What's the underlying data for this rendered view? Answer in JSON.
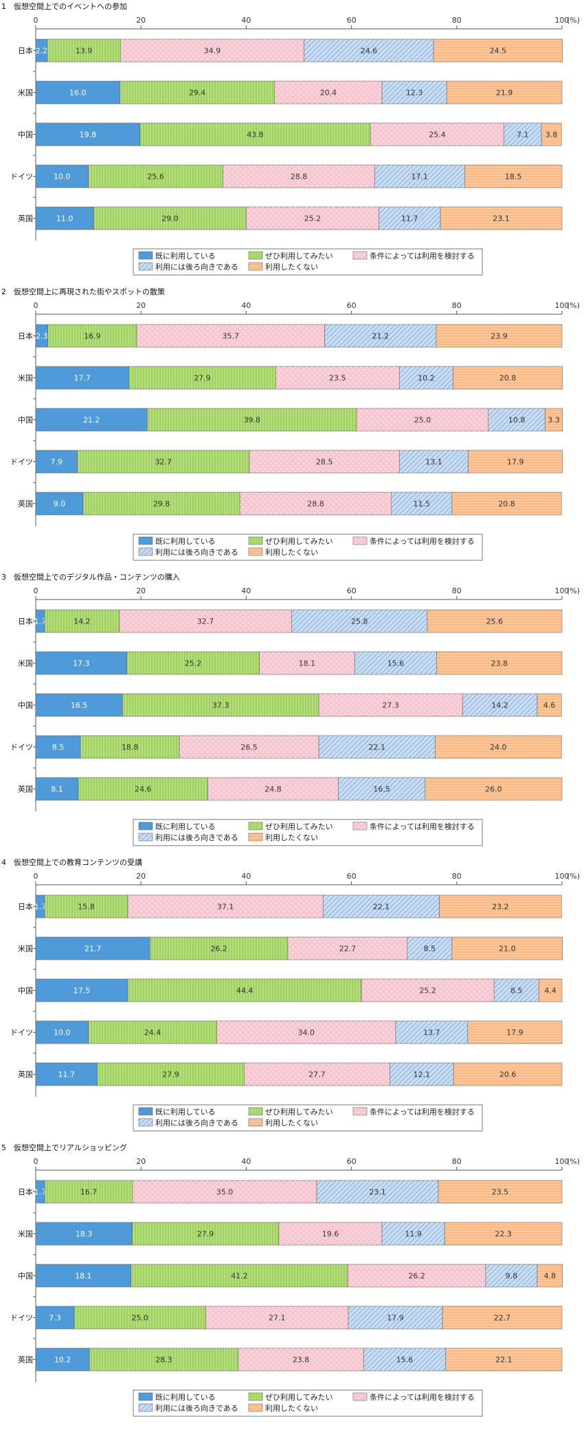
{
  "unit_label": "(%)",
  "legend_labels": [
    "既に利用している",
    "ぜひ利用してみたい",
    "条件によっては利用を検討する",
    "利用には後ろ向きである",
    "利用したくない"
  ],
  "series_colors": [
    "#4f9ad9",
    "#b6e07a",
    "#fbc6d0",
    "#b9d3ee",
    "#fcc79b"
  ],
  "chart_data": [
    {
      "type": "bar",
      "orientation": "horizontal-stacked",
      "title": "1　仮想空間上でのイベントへの参加",
      "categories": [
        "日本",
        "米国",
        "中国",
        "ドイツ",
        "英国"
      ],
      "xlim": [
        0,
        100
      ],
      "ticks": [
        "0",
        "20",
        "40",
        "60",
        "80",
        "100"
      ],
      "series": [
        {
          "name": "既に利用している",
          "values": [
            2.2,
            16.0,
            19.8,
            10.0,
            11.0
          ]
        },
        {
          "name": "ぜひ利用してみたい",
          "values": [
            13.9,
            29.4,
            43.8,
            25.6,
            29.0
          ]
        },
        {
          "name": "条件によっては利用を検討する",
          "values": [
            34.9,
            20.4,
            25.4,
            28.8,
            25.2
          ]
        },
        {
          "name": "利用には後ろ向きである",
          "values": [
            24.6,
            12.3,
            7.1,
            17.1,
            11.7
          ]
        },
        {
          "name": "利用したくない",
          "values": [
            24.5,
            21.9,
            3.8,
            18.5,
            23.1
          ]
        }
      ]
    },
    {
      "type": "bar",
      "orientation": "horizontal-stacked",
      "title": "2　仮想空間上に再現された街やスポットの散策",
      "categories": [
        "日本",
        "米国",
        "中国",
        "ドイツ",
        "英国"
      ],
      "xlim": [
        0,
        100
      ],
      "ticks": [
        "0",
        "20",
        "40",
        "60",
        "80",
        "100"
      ],
      "series": [
        {
          "name": "既に利用している",
          "values": [
            2.3,
            17.7,
            21.2,
            7.9,
            9.0
          ]
        },
        {
          "name": "ぜひ利用してみたい",
          "values": [
            16.9,
            27.9,
            39.8,
            32.7,
            29.8
          ]
        },
        {
          "name": "条件によっては利用を検討する",
          "values": [
            35.7,
            23.5,
            25.0,
            28.5,
            28.8
          ]
        },
        {
          "name": "利用には後ろ向きである",
          "values": [
            21.2,
            10.2,
            10.8,
            13.1,
            11.5
          ]
        },
        {
          "name": "利用したくない",
          "values": [
            23.9,
            20.8,
            3.3,
            17.9,
            20.8
          ]
        }
      ]
    },
    {
      "type": "bar",
      "orientation": "horizontal-stacked",
      "title": "3　仮想空間上でのデジタル作品・コンテンツの購入",
      "categories": [
        "日本",
        "米国",
        "中国",
        "ドイツ",
        "英国"
      ],
      "xlim": [
        0,
        100
      ],
      "ticks": [
        "0",
        "20",
        "40",
        "60",
        "80",
        "100"
      ],
      "series": [
        {
          "name": "既に利用している",
          "values": [
            1.7,
            17.3,
            16.5,
            8.5,
            8.1
          ]
        },
        {
          "name": "ぜひ利用してみたい",
          "values": [
            14.2,
            25.2,
            37.3,
            18.8,
            24.6
          ]
        },
        {
          "name": "条件によっては利用を検討する",
          "values": [
            32.7,
            18.1,
            27.3,
            26.5,
            24.8
          ]
        },
        {
          "name": "利用には後ろ向きである",
          "values": [
            25.8,
            15.6,
            14.2,
            22.1,
            16.5
          ]
        },
        {
          "name": "利用したくない",
          "values": [
            25.6,
            23.8,
            4.6,
            24.0,
            26.0
          ]
        }
      ]
    },
    {
      "type": "bar",
      "orientation": "horizontal-stacked",
      "title": "4　仮想空間上での教育コンテンツの受講",
      "categories": [
        "日本",
        "米国",
        "中国",
        "ドイツ",
        "英国"
      ],
      "xlim": [
        0,
        100
      ],
      "ticks": [
        "0",
        "20",
        "40",
        "60",
        "80",
        "100"
      ],
      "series": [
        {
          "name": "既に利用している",
          "values": [
            1.7,
            21.7,
            17.5,
            10.0,
            11.7
          ]
        },
        {
          "name": "ぜひ利用してみたい",
          "values": [
            15.8,
            26.2,
            44.4,
            24.4,
            27.9
          ]
        },
        {
          "name": "条件によっては利用を検討する",
          "values": [
            37.1,
            22.7,
            25.2,
            34.0,
            27.7
          ]
        },
        {
          "name": "利用には後ろ向きである",
          "values": [
            22.1,
            8.5,
            8.5,
            13.7,
            12.1
          ]
        },
        {
          "name": "利用したくない",
          "values": [
            23.2,
            21.0,
            4.4,
            17.9,
            20.6
          ]
        }
      ]
    },
    {
      "type": "bar",
      "orientation": "horizontal-stacked",
      "title": "5　仮想空間上でリアルショッピング",
      "categories": [
        "日本",
        "米国",
        "中国",
        "ドイツ",
        "英国"
      ],
      "xlim": [
        0,
        100
      ],
      "ticks": [
        "0",
        "20",
        "40",
        "60",
        "80",
        "100"
      ],
      "series": [
        {
          "name": "既に利用している",
          "values": [
            1.7,
            18.3,
            18.1,
            7.3,
            10.2
          ]
        },
        {
          "name": "ぜひ利用してみたい",
          "values": [
            16.7,
            27.9,
            41.2,
            25.0,
            28.3
          ]
        },
        {
          "name": "条件によっては利用を検討する",
          "values": [
            35.0,
            19.6,
            26.2,
            27.1,
            23.8
          ]
        },
        {
          "name": "利用には後ろ向きである",
          "values": [
            23.1,
            11.9,
            9.8,
            17.9,
            15.6
          ]
        },
        {
          "name": "利用したくない",
          "values": [
            23.5,
            22.3,
            4.8,
            22.7,
            22.1
          ]
        }
      ]
    }
  ]
}
